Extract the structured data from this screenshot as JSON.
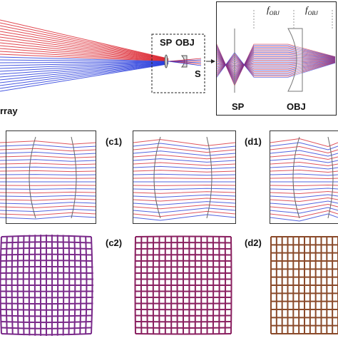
{
  "top": {
    "array_label": "rray",
    "inset": {
      "sp": "SP",
      "obj": "OBJ",
      "s": "S"
    },
    "zoom": {
      "sp": "SP",
      "obj": "OBJ",
      "focal_1": {
        "symbol": "f",
        "subscript": "OBJ"
      },
      "focal_2": {
        "symbol": "f",
        "subscript": "OBJ"
      }
    }
  },
  "panels": {
    "c1": "(c1)",
    "d1": "(d1)",
    "c2": "(c2)",
    "d2": "(d2)"
  }
}
